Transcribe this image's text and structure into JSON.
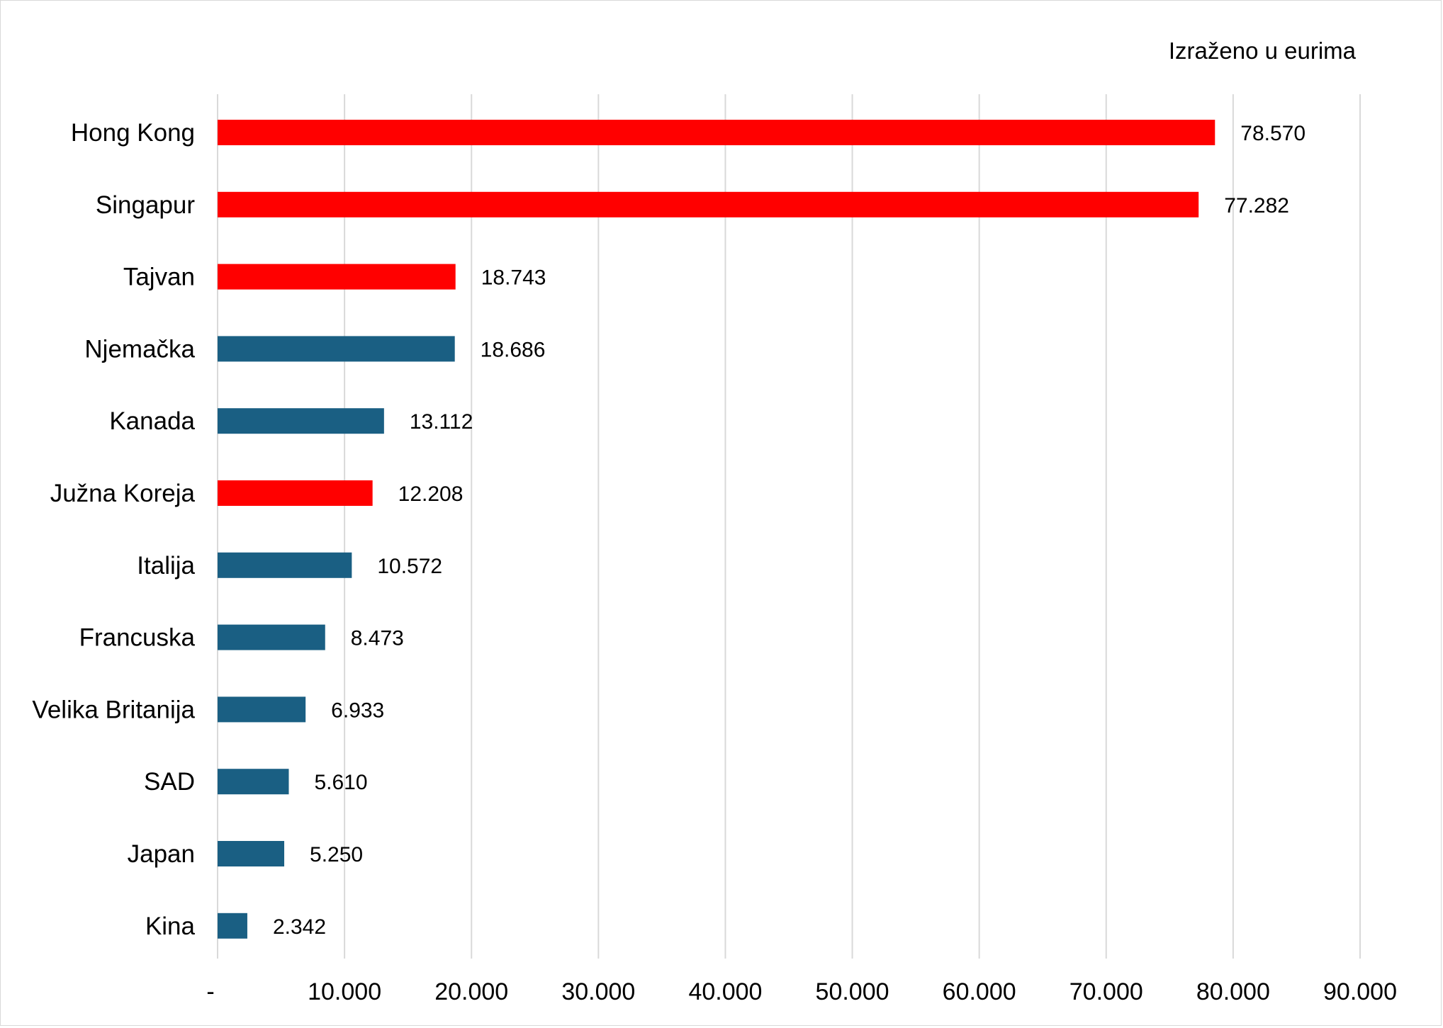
{
  "chart_data": {
    "type": "bar",
    "orientation": "horizontal",
    "note": "Izraženo u eurima",
    "categories": [
      "Hong Kong",
      "Singapur",
      "Tajvan",
      "Njemačka",
      "Kanada",
      "Južna Koreja",
      "Italija",
      "Francuska",
      "Velika Britanija",
      "SAD",
      "Japan",
      "Kina"
    ],
    "values": [
      78570,
      77282,
      18743,
      18686,
      13112,
      12208,
      10572,
      8473,
      6933,
      5610,
      5250,
      2342
    ],
    "value_labels": [
      "78.570",
      "77.282",
      "18.743",
      "18.686",
      "13.112",
      "12.208",
      "10.572",
      "8.473",
      "6.933",
      "5.610",
      "5.250",
      "2.342"
    ],
    "highlighted": [
      true,
      true,
      true,
      false,
      false,
      true,
      false,
      false,
      false,
      false,
      false,
      false
    ],
    "xlim": [
      0,
      90000
    ],
    "ticks": [
      0,
      10000,
      20000,
      30000,
      40000,
      50000,
      60000,
      70000,
      80000,
      90000
    ],
    "tick_labels": [
      "-",
      "10.000",
      "20.000",
      "30.000",
      "40.000",
      "50.000",
      "60.000",
      "70.000",
      "80.000",
      "90.000"
    ],
    "grid": true,
    "legend": "none",
    "colors": {
      "highlight": "#ff0000",
      "default": "#1a5f83",
      "grid": "#d9d9d9"
    }
  }
}
